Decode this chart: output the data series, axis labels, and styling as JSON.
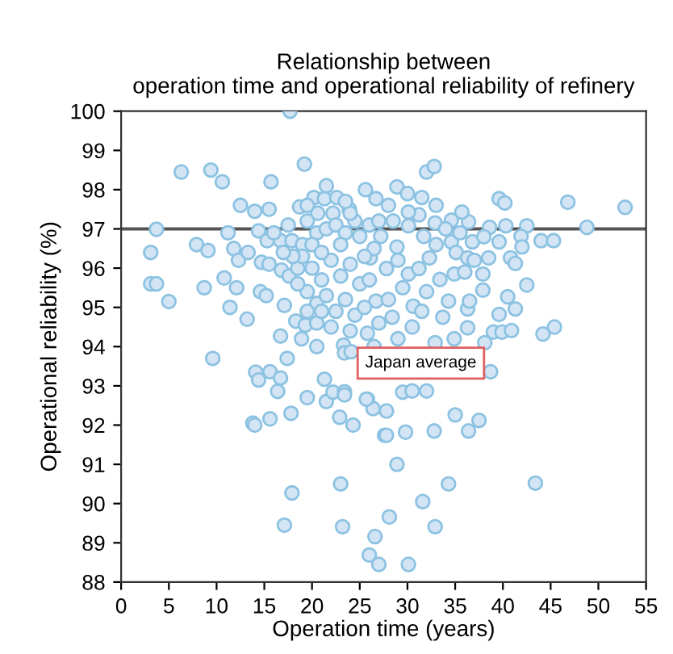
{
  "chart_data": {
    "type": "scatter",
    "title": "Relationship between\noperation time and operational reliability of refinery",
    "xlabel": "Operation time (years)",
    "ylabel": "Operational reliability (%)",
    "xlim": [
      0,
      55
    ],
    "ylim": [
      88,
      100
    ],
    "xticks": [
      0,
      5,
      10,
      15,
      20,
      25,
      30,
      35,
      40,
      45,
      50,
      55
    ],
    "yticks": [
      88,
      89,
      90,
      91,
      92,
      93,
      94,
      95,
      96,
      97,
      98,
      99,
      100
    ],
    "grid": false,
    "legend": false,
    "marker": "circle",
    "ref_lines": [
      {
        "axis": "y",
        "value": 97,
        "color": "#555555"
      }
    ],
    "annotations": [
      "Japan average"
    ],
    "series": [
      {
        "color": "#d3e5f5",
        "x": [
          17.7,
          6.3,
          9.4,
          10.6,
          19.2,
          15.7,
          3.7,
          3.1,
          3.1,
          3.7,
          5.0,
          7.9,
          9.1,
          8.7,
          10.8,
          12.1,
          11.4,
          13.2,
          12.5,
          14.0,
          15.5,
          11.2,
          11.8,
          12.3,
          13.3,
          14.4,
          15.3,
          14.7,
          14.6,
          15.2,
          17.1,
          16.8,
          17.6,
          18.5,
          16.7,
          17.9,
          19.0,
          18.7,
          20.2,
          20.6,
          21.3,
          22.6,
          22.2,
          23.9,
          25.6,
          26.7,
          18.3,
          19.3,
          20.5,
          16.7,
          18.9,
          20.5,
          9.6,
          14.1,
          14.4,
          15.6,
          16.7,
          16.4,
          17.4,
          13.8,
          14.0,
          15.6,
          17.8,
          19.5,
          21.3,
          21.5,
          22.2,
          23.4,
          23.4,
          22.9,
          24.3,
          23.3,
          23.4,
          24.1,
          25.8,
          26.4,
          27.6,
          23.0,
          17.9,
          17.1,
          23.2,
          26.0,
          27.0,
          26.6,
          28.1,
          30.1,
          32.9,
          31.6,
          34.3,
          43.4,
          28.9,
          27.8,
          29.8,
          32.8,
          36.4,
          35.0,
          37.5,
          25.7,
          27.8,
          29.5,
          30.5,
          32.0,
          38.7,
          44.2,
          45.4,
          39.0,
          39.9,
          40.9,
          38.1,
          32.9,
          34.9,
          36.3,
          32.0,
          32.8,
          28.9,
          39.6,
          40.2,
          46.8,
          52.8,
          48.8,
          44.0,
          45.3,
          42.5,
          41.9,
          42.0,
          42.5,
          40.8,
          41.3,
          40.5,
          41.3,
          39.6,
          37.9,
          38.5,
          36.8,
          36.4,
          38.6,
          40.3,
          39.6,
          34.6,
          35.1,
          36.3,
          34.9,
          35.7,
          34.6,
          32.9,
          31.2,
          30.1,
          32.3,
          33.4,
          34.3,
          33.7,
          36.3,
          36.5,
          37.9,
          30.1,
          27.8,
          26.7,
          28.4,
          25.8,
          30.6,
          31.2,
          27.2,
          28.9,
          26.1,
          25.0,
          30.1,
          31.7,
          19.5,
          20.5,
          21.5,
          22.5,
          23.5,
          24.5,
          19.0,
          20.0,
          21.0,
          22.0,
          23.0,
          24.0,
          25.0,
          19.5,
          20.5,
          21.5,
          22.5,
          23.5,
          24.5,
          18.5,
          21.0,
          22.0,
          24.0,
          25.5,
          26.0,
          26.5,
          25.5,
          20.0,
          18.0,
          17.0,
          19.5,
          21.0,
          23.0,
          24.0,
          26.0,
          27.0,
          28.5,
          29.0,
          29.5,
          28.0,
          27.0,
          26.5,
          29.0,
          30.5,
          31.5,
          32.0,
          33.0,
          34.0,
          35.5,
          36.0,
          37.0,
          38.0,
          33.0,
          31.5,
          30.0,
          28.0,
          23.5,
          21.5,
          19.5,
          17.5,
          16.0,
          15.5
        ],
        "values": [
          100.0,
          98.45,
          98.5,
          98.2,
          98.65,
          98.2,
          96.99,
          96.4,
          95.6,
          95.6,
          95.15,
          96.6,
          96.45,
          95.5,
          95.75,
          95.5,
          95.0,
          94.7,
          97.6,
          97.45,
          97.5,
          96.9,
          96.5,
          96.2,
          96.4,
          96.95,
          96.7,
          96.15,
          95.4,
          95.3,
          95.05,
          95.95,
          95.8,
          96.0,
          96.7,
          96.7,
          96.6,
          97.56,
          97.8,
          97.4,
          97.77,
          97.8,
          97.4,
          97.5,
          98.0,
          97.77,
          94.65,
          94.55,
          94.6,
          94.27,
          94.2,
          94.0,
          93.7,
          93.35,
          93.15,
          93.36,
          93.2,
          92.86,
          93.7,
          92.05,
          92.0,
          92.16,
          92.3,
          92.7,
          93.17,
          92.6,
          92.84,
          92.85,
          92.77,
          92.2,
          92.0,
          94.04,
          93.84,
          93.87,
          92.66,
          92.42,
          91.74,
          90.5,
          90.27,
          89.45,
          89.41,
          88.69,
          88.45,
          89.16,
          89.66,
          88.45,
          89.41,
          90.05,
          90.5,
          90.52,
          91.0,
          91.74,
          91.82,
          91.85,
          91.85,
          92.26,
          92.12,
          92.66,
          92.36,
          92.84,
          92.87,
          92.87,
          93.36,
          94.32,
          94.5,
          94.37,
          94.37,
          94.41,
          94.1,
          94.1,
          94.2,
          94.48,
          98.45,
          98.59,
          98.07,
          97.77,
          97.66,
          97.68,
          97.55,
          97.04,
          96.7,
          96.7,
          97.08,
          96.81,
          96.54,
          95.57,
          96.26,
          96.12,
          95.27,
          94.96,
          94.82,
          95.85,
          96.26,
          96.67,
          97.18,
          97.04,
          97.08,
          96.67,
          96.67,
          96.4,
          96.26,
          95.85,
          97.43,
          97.22,
          97.15,
          97.36,
          97.43,
          96.26,
          95.71,
          95.16,
          94.75,
          94.96,
          95.16,
          95.44,
          95.85,
          95.99,
          95.16,
          94.75,
          94.34,
          95.03,
          95.99,
          96.81,
          96.54,
          96.26,
          96.81,
          97.08,
          96.81,
          97.2,
          96.9,
          97.0,
          97.1,
          96.9,
          97.2,
          96.3,
          96.0,
          95.7,
          96.2,
          95.8,
          96.1,
          95.6,
          95.4,
          95.1,
          95.3,
          94.9,
          95.2,
          94.8,
          95.6,
          94.9,
          94.5,
          94.4,
          95.0,
          95.7,
          96.5,
          96.3,
          96.6,
          96.3,
          96.4,
          94.9,
          96.4,
          96.6,
          97.4,
          97.1,
          97.2,
          97.2,
          96.2,
          95.5,
          95.2,
          94.6,
          94.0,
          94.2,
          94.5,
          94.9,
          95.4,
          96.6,
          97.0,
          96.9,
          95.9,
          96.2,
          96.8,
          97.6,
          97.8,
          97.9,
          97.6,
          97.7,
          98.1,
          97.6,
          97.1,
          96.9,
          96.1
        ]
      }
    ]
  }
}
